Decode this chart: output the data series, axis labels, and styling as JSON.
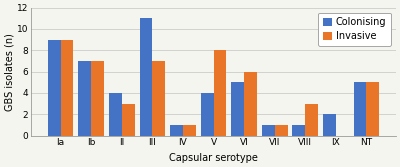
{
  "categories": [
    "Ia",
    "Ib",
    "II",
    "III",
    "IV",
    "V",
    "VI",
    "VII",
    "VIII",
    "IX",
    "NT"
  ],
  "colonising": [
    9,
    7,
    4,
    11,
    1,
    4,
    5,
    1,
    1,
    2,
    5
  ],
  "invasive": [
    9,
    7,
    3,
    7,
    1,
    8,
    6,
    1,
    3,
    0,
    5
  ],
  "colonising_color": "#4472C4",
  "invasive_color": "#E97628",
  "xlabel": "Capsular serotype",
  "ylabel": "GBS isolates (n)",
  "ylim": [
    0,
    12
  ],
  "yticks": [
    0,
    2,
    4,
    6,
    8,
    10,
    12
  ],
  "legend_labels": [
    "Colonising",
    "Invasive"
  ],
  "bar_width": 0.42,
  "axis_fontsize": 7,
  "tick_fontsize": 6.5,
  "legend_fontsize": 7,
  "background_color": "#F5F5F0",
  "plot_bg_color": "#F5F5F0",
  "grid_color": "#CCCCCC"
}
